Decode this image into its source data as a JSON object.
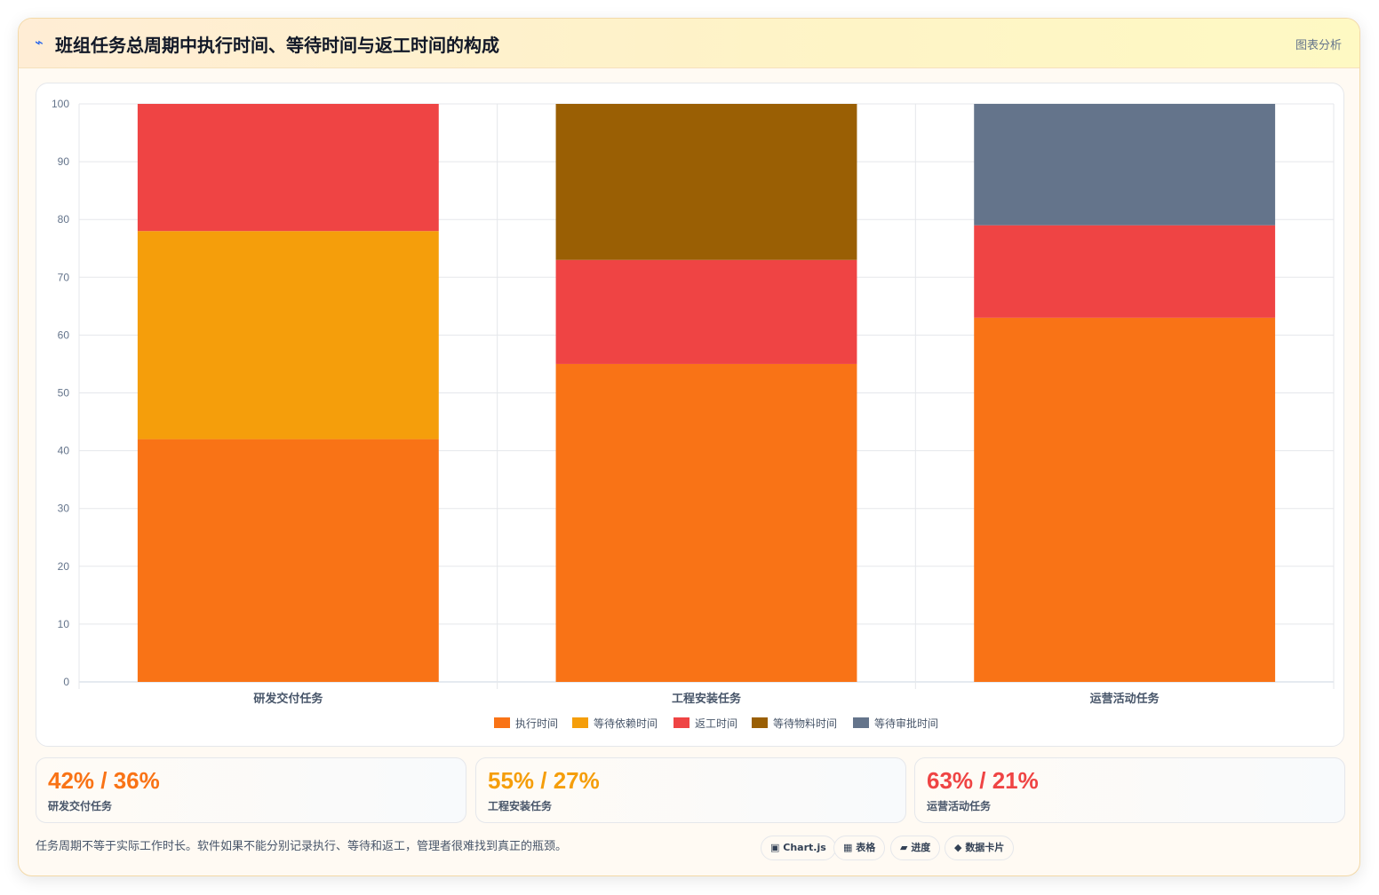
{
  "header": {
    "icon": "⌁",
    "title": "班组任务总周期中执行时间、等待时间与返工时间的构成",
    "right_label": "图表分析"
  },
  "chart_data": {
    "type": "bar",
    "stacked": true,
    "categories": [
      "研发交付任务",
      "工程安装任务",
      "运营活动任务"
    ],
    "series": [
      {
        "name": "执行时间",
        "color": "#f97316",
        "values": [
          42,
          55,
          63
        ]
      },
      {
        "name": "等待依赖时间",
        "color": "#f59e0b",
        "values": [
          36,
          0,
          0
        ]
      },
      {
        "name": "返工时间",
        "color": "#ef4444",
        "values": [
          22,
          18,
          16
        ]
      },
      {
        "name": "等待物料时间",
        "color": "#9a5f04",
        "values": [
          0,
          27,
          0
        ]
      },
      {
        "name": "等待审批时间",
        "color": "#64748b",
        "values": [
          0,
          0,
          21
        ]
      }
    ],
    "ylim": [
      0,
      100
    ],
    "yticks": [
      0,
      10,
      20,
      30,
      40,
      50,
      60,
      70,
      80,
      90,
      100
    ],
    "grid": true,
    "legend": "bottom"
  },
  "stats": [
    {
      "value": "42% / 36%",
      "label": "研发交付任务",
      "color": "#f97316"
    },
    {
      "value": "55% / 27%",
      "label": "工程安装任务",
      "color": "#f59e0b"
    },
    {
      "value": "63% / 21%",
      "label": "运营活动任务",
      "color": "#ef4444"
    }
  ],
  "footnote": "任务周期不等于实际工作时长。软件如果不能分别记录执行、等待和返工，管理者很难找到真正的瓶颈。",
  "chips": [
    {
      "icon": "▣",
      "label": "Chart.js"
    },
    {
      "icon": "▦",
      "label": "表格"
    },
    {
      "icon": "▰",
      "label": "进度"
    },
    {
      "icon": "◆",
      "label": "数据卡片"
    }
  ]
}
